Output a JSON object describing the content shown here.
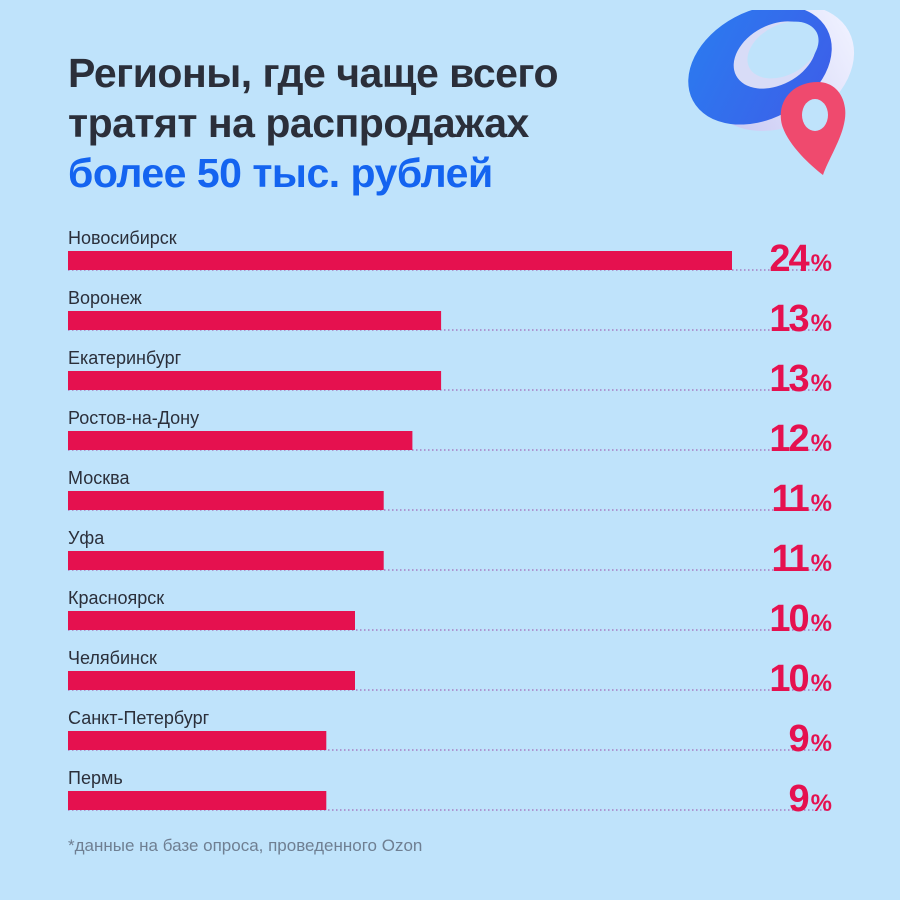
{
  "title": {
    "line1": "Регионы, где чаще всего",
    "line2": "тратят на распродажах",
    "accent": "более 50 тыс. рублей"
  },
  "footnote": "*данные на базе опроса, проведенного Ozon",
  "colors": {
    "background": "#bfe3fb",
    "bar": "#e5114f",
    "accent": "#1464f0",
    "dots": "#a06ab8"
  },
  "decoration": {
    "icons": [
      "blue-ring-icon",
      "map-pin-icon"
    ]
  },
  "chart_data": {
    "type": "bar",
    "orientation": "horizontal",
    "categories": [
      "Новосибирск",
      "Воронеж",
      "Екатеринбург",
      "Ростов-на-Дону",
      "Москва",
      "Уфа",
      "Красноярск",
      "Челябинск",
      "Санкт-Петербург",
      "Пермь"
    ],
    "values": [
      24,
      13,
      13,
      12,
      11,
      11,
      10,
      10,
      9,
      9
    ],
    "unit": "%",
    "grid": false,
    "legend": "none"
  }
}
